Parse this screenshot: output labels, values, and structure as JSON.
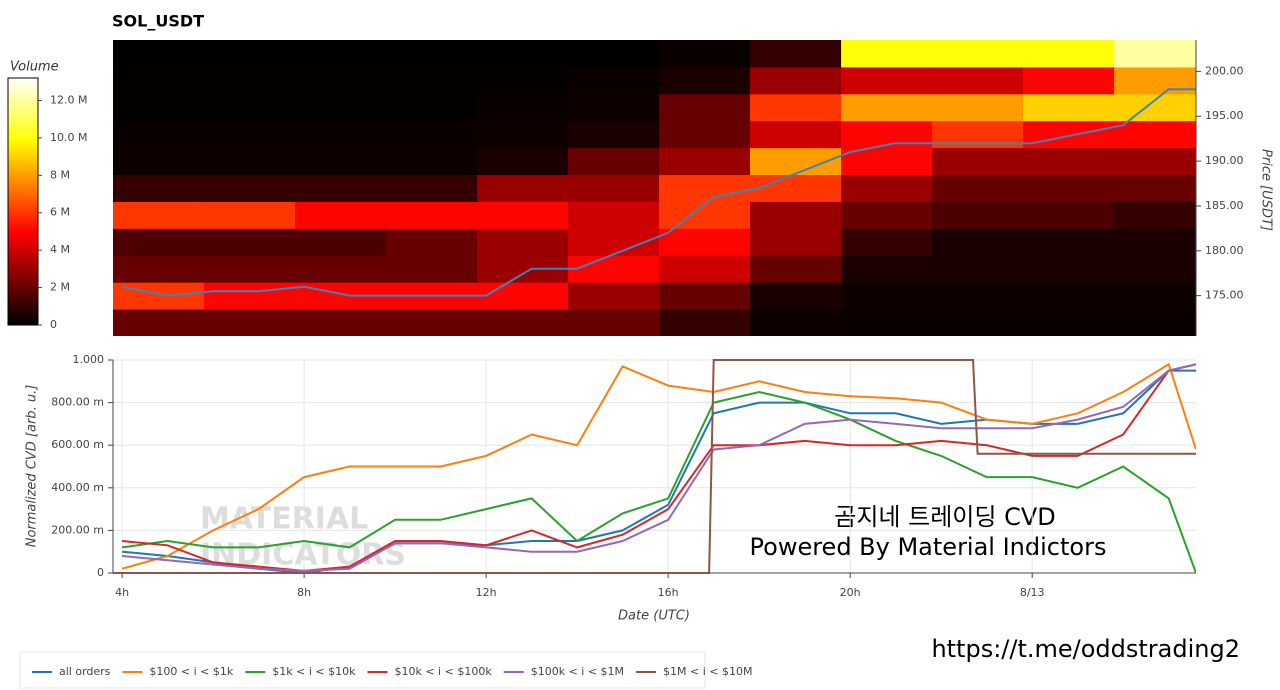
{
  "chart_data": [
    {
      "type": "heatmap",
      "title": "SOL_USDT",
      "ylabel": "Price [USDT]",
      "colorbar_label": "Volume",
      "xlim": [
        3.8,
        27.6
      ],
      "ylim": [
        170.5,
        203.5
      ],
      "yticks": [
        {
          "value": 175,
          "label": "175.00"
        },
        {
          "value": 180,
          "label": "180.00"
        },
        {
          "value": 185,
          "label": "185.00"
        },
        {
          "value": 190,
          "label": "190.00"
        },
        {
          "value": 195,
          "label": "195.00"
        },
        {
          "value": 200,
          "label": "200.00"
        }
      ],
      "clim": [
        0,
        13.2
      ],
      "cticks": [
        0,
        {
          "value": 2,
          "label": "2 M"
        },
        {
          "value": 4,
          "label": "4 M"
        },
        {
          "value": 6,
          "label": "6 M"
        },
        {
          "value": 8,
          "label": "8 M"
        },
        {
          "value": 10,
          "label": "10.0 M"
        },
        {
          "value": 12,
          "label": "12.0 M"
        }
      ],
      "xbins": [
        3.8,
        5.8,
        7.8,
        9.8,
        11.8,
        13.8,
        15.8,
        17.8,
        19.8,
        21.8,
        23.8,
        25.8,
        27.6
      ],
      "ybins": [
        170.5,
        173.5,
        176.5,
        179.5,
        182.5,
        185.5,
        188.5,
        191.5,
        194.5,
        197.5,
        200.5,
        203.5
      ],
      "z": [
        [
          2,
          2,
          2,
          2,
          2,
          2,
          1,
          0.3,
          0.2,
          0.2,
          0.2,
          0.2
        ],
        [
          6,
          5,
          5,
          5,
          5,
          3,
          2,
          0.5,
          0.3,
          0.3,
          0.3,
          0.3
        ],
        [
          2,
          2,
          2,
          2,
          3,
          5,
          4,
          2,
          0.5,
          0.5,
          0.5,
          0.5
        ],
        [
          1.5,
          1.5,
          1.5,
          2,
          3,
          4,
          5,
          3,
          1,
          0.5,
          0.5,
          0.5
        ],
        [
          6,
          6,
          5,
          5,
          5,
          4,
          6,
          3,
          2,
          1.5,
          1.5,
          1
        ],
        [
          1,
          1,
          1,
          1,
          3,
          3,
          6,
          6,
          3,
          2,
          2,
          2
        ],
        [
          0.3,
          0.3,
          0.3,
          0.3,
          0.5,
          2,
          3,
          8,
          5,
          3,
          3,
          3
        ],
        [
          0.2,
          0.2,
          0.2,
          0.2,
          0.3,
          0.5,
          2,
          4,
          5,
          6,
          5,
          5
        ],
        [
          0.1,
          0.1,
          0.1,
          0.1,
          0.2,
          0.3,
          2,
          6,
          8,
          8,
          9,
          9
        ],
        [
          0.1,
          0.1,
          0.1,
          0.1,
          0.1,
          0.2,
          0.5,
          3,
          4,
          4,
          5,
          8
        ],
        [
          0,
          0,
          0,
          0,
          0,
          0,
          0.2,
          1,
          10,
          10,
          10,
          12
        ]
      ],
      "x": [
        4,
        5,
        6,
        7,
        8,
        9,
        10,
        11,
        12,
        13,
        14,
        15,
        16,
        17,
        18,
        19,
        20,
        21,
        22,
        23,
        24,
        25,
        26,
        27,
        27.6
      ],
      "series": [
        {
          "color": "#3a84c4",
          "values": [
            176,
            175,
            175.5,
            175.5,
            176,
            175,
            175,
            175,
            175,
            178,
            178,
            180,
            182,
            186,
            187,
            189,
            191,
            192,
            192,
            192,
            192,
            193,
            194,
            198,
            198
          ]
        }
      ]
    },
    {
      "type": "line",
      "xlabel": "Date (UTC)",
      "ylabel": "Normalized CVD [arb. u.]",
      "grid": true,
      "xlim": [
        3.8,
        27.6
      ],
      "ylim": [
        0,
        1
      ],
      "xticks": [
        {
          "value": 4,
          "label": "4h"
        },
        {
          "value": 8,
          "label": "8h"
        },
        {
          "value": 12,
          "label": "12h"
        },
        {
          "value": 16,
          "label": "16h"
        },
        {
          "value": 20,
          "label": "20h"
        },
        {
          "value": 24,
          "label": "8/13"
        }
      ],
      "yticks": [
        0,
        {
          "value": 0.2,
          "label": "200.00 m"
        },
        {
          "value": 0.4,
          "label": "400.00 m"
        },
        {
          "value": 0.6,
          "label": "600.00 m"
        },
        {
          "value": 0.8,
          "label": "800.00 m"
        },
        {
          "value": 1,
          "label": "1.000"
        }
      ],
      "x": [
        4,
        5,
        6,
        7,
        8,
        9,
        10,
        11,
        12,
        13,
        14,
        15,
        16,
        17,
        18,
        19,
        20,
        21,
        22,
        23,
        24,
        25,
        26,
        27,
        27.6
      ],
      "series": [
        {
          "name": "all orders",
          "color": "#1f77b4",
          "values": [
            0.1,
            0.08,
            0.05,
            0.02,
            0,
            0.03,
            0.14,
            0.14,
            0.13,
            0.15,
            0.15,
            0.2,
            0.32,
            0.75,
            0.8,
            0.8,
            0.75,
            0.75,
            0.7,
            0.72,
            0.7,
            0.7,
            0.75,
            0.95,
            0.95
          ]
        },
        {
          "name": "$100 < i < $1k",
          "color": "#ff7f0e",
          "values": [
            0.02,
            0.08,
            0.2,
            0.3,
            0.45,
            0.5,
            0.5,
            0.5,
            0.55,
            0.65,
            0.6,
            0.97,
            0.88,
            0.85,
            0.9,
            0.85,
            0.83,
            0.82,
            0.8,
            0.72,
            0.7,
            0.75,
            0.85,
            0.98,
            0.58
          ]
        },
        {
          "name": "$1k < i < $10k",
          "color": "#2ca02c",
          "values": [
            0.12,
            0.15,
            0.12,
            0.12,
            0.15,
            0.12,
            0.25,
            0.25,
            0.3,
            0.35,
            0.15,
            0.28,
            0.35,
            0.8,
            0.85,
            0.8,
            0.72,
            0.62,
            0.55,
            0.45,
            0.45,
            0.4,
            0.5,
            0.35,
            0
          ]
        },
        {
          "name": "$10k < i < $100k",
          "color": "#d62728",
          "values": [
            0.15,
            0.13,
            0.05,
            0.03,
            0.01,
            0.03,
            0.15,
            0.15,
            0.13,
            0.2,
            0.12,
            0.18,
            0.3,
            0.6,
            0.6,
            0.62,
            0.6,
            0.6,
            0.62,
            0.6,
            0.55,
            0.55,
            0.65,
            0.95,
            0.98
          ]
        },
        {
          "name": "$100k < i < $1M",
          "color": "#9467bd",
          "values": [
            0.08,
            0.06,
            0.04,
            0.02,
            0.01,
            0.02,
            0.14,
            0.14,
            0.12,
            0.1,
            0.1,
            0.15,
            0.25,
            0.58,
            0.6,
            0.7,
            0.72,
            0.7,
            0.68,
            0.68,
            0.68,
            0.72,
            0.78,
            0.95,
            0.98
          ]
        },
        {
          "name": "$1M < i < $10M",
          "color": "#8c564b",
          "x": [
            3.8,
            16.9,
            17,
            22.7,
            22.8,
            27.6
          ],
          "values": [
            0,
            0,
            1,
            1,
            0.56,
            0.56
          ]
        }
      ]
    }
  ],
  "annotations": {
    "watermark": [
      "MATERIAL",
      "INDICATORS"
    ],
    "caption": [
      "곰지네 트레이딩 CVD",
      "Powered By Material Indictors"
    ],
    "link": "https://t.me/oddstrading2"
  }
}
